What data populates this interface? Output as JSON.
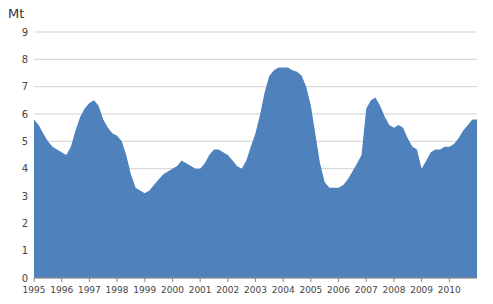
{
  "chart_data": {
    "type": "area",
    "title": "Mt",
    "x": [
      1995.0,
      1995.17,
      1995.33,
      1995.5,
      1995.67,
      1995.83,
      1996.0,
      1996.17,
      1996.33,
      1996.5,
      1996.67,
      1996.83,
      1997.0,
      1997.17,
      1997.33,
      1997.5,
      1997.67,
      1997.83,
      1998.0,
      1998.17,
      1998.33,
      1998.5,
      1998.67,
      1998.83,
      1999.0,
      1999.17,
      1999.33,
      1999.5,
      1999.67,
      1999.83,
      2000.0,
      2000.17,
      2000.33,
      2000.5,
      2000.67,
      2000.83,
      2001.0,
      2001.17,
      2001.33,
      2001.5,
      2001.67,
      2001.83,
      2002.0,
      2002.17,
      2002.33,
      2002.5,
      2002.67,
      2002.83,
      2003.0,
      2003.17,
      2003.33,
      2003.5,
      2003.67,
      2003.83,
      2004.0,
      2004.17,
      2004.33,
      2004.5,
      2004.67,
      2004.83,
      2005.0,
      2005.17,
      2005.33,
      2005.5,
      2005.67,
      2005.83,
      2006.0,
      2006.17,
      2006.33,
      2006.5,
      2006.67,
      2006.83,
      2007.0,
      2007.17,
      2007.33,
      2007.5,
      2007.67,
      2007.83,
      2008.0,
      2008.17,
      2008.33,
      2008.5,
      2008.67,
      2008.83,
      2009.0,
      2009.17,
      2009.33,
      2009.5,
      2009.67,
      2009.83,
      2010.0,
      2010.17,
      2010.33,
      2010.5,
      2010.67,
      2010.83,
      2011.0
    ],
    "values": [
      5.8,
      5.6,
      5.3,
      5.0,
      4.8,
      4.7,
      4.6,
      4.5,
      4.8,
      5.4,
      5.9,
      6.2,
      6.4,
      6.5,
      6.3,
      5.8,
      5.5,
      5.3,
      5.2,
      5.0,
      4.5,
      3.8,
      3.3,
      3.2,
      3.1,
      3.2,
      3.4,
      3.6,
      3.8,
      3.9,
      4.0,
      4.1,
      4.3,
      4.2,
      4.1,
      4.0,
      4.0,
      4.2,
      4.5,
      4.7,
      4.7,
      4.6,
      4.5,
      4.3,
      4.1,
      4.0,
      4.3,
      4.8,
      5.3,
      6.0,
      6.8,
      7.4,
      7.6,
      7.7,
      7.7,
      7.7,
      7.6,
      7.55,
      7.4,
      7.0,
      6.3,
      5.2,
      4.2,
      3.5,
      3.3,
      3.3,
      3.3,
      3.4,
      3.6,
      3.9,
      4.2,
      4.5,
      6.2,
      6.5,
      6.6,
      6.3,
      5.9,
      5.6,
      5.5,
      5.6,
      5.5,
      5.1,
      4.8,
      4.7,
      4.0,
      4.3,
      4.6,
      4.7,
      4.7,
      4.8,
      4.8,
      4.9,
      5.1,
      5.4,
      5.6,
      5.8,
      5.8
    ],
    "color": "#4f81bd",
    "xlim": [
      1995,
      2011
    ],
    "ylim": [
      0,
      9
    ],
    "xticks": [
      1995,
      1996,
      1997,
      1998,
      1999,
      2000,
      2001,
      2002,
      2003,
      2004,
      2005,
      2006,
      2007,
      2008,
      2009,
      2010
    ],
    "yticks": [
      0,
      1,
      2,
      3,
      4,
      5,
      6,
      7,
      8,
      9
    ],
    "grid": true
  }
}
